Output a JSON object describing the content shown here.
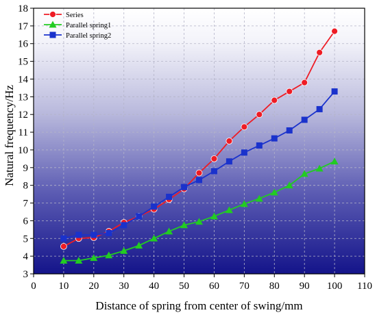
{
  "chart_data": {
    "type": "line",
    "title": "",
    "xlabel": "Distance of spring from center of swing/mm",
    "ylabel": "Natural frequency/Hz",
    "xlim": [
      0,
      110
    ],
    "ylim": [
      3,
      18
    ],
    "xticks": [
      0,
      10,
      20,
      30,
      40,
      50,
      60,
      70,
      80,
      90,
      100,
      110
    ],
    "yticks": [
      3,
      4,
      5,
      6,
      7,
      8,
      9,
      10,
      11,
      12,
      13,
      14,
      15,
      16,
      17,
      18
    ],
    "grid": true,
    "legend": "top-left",
    "background": "vertical gradient from white (top) to navy (bottom)",
    "x": [
      10,
      15,
      20,
      25,
      30,
      35,
      40,
      45,
      50,
      55,
      60,
      65,
      70,
      75,
      80,
      85,
      90,
      95,
      100
    ],
    "series": [
      {
        "name": "Series",
        "marker": "circle",
        "color": "#ee1c25",
        "values": [
          4.55,
          5.0,
          5.05,
          5.4,
          5.9,
          6.25,
          6.65,
          7.2,
          7.8,
          8.7,
          9.5,
          10.5,
          11.3,
          12.0,
          12.8,
          13.3,
          13.8,
          15.5,
          16.7
        ]
      },
      {
        "name": "Parallel spring1",
        "marker": "triangle",
        "color": "#22cc22",
        "values": [
          3.75,
          3.75,
          3.9,
          4.05,
          4.3,
          4.6,
          5.0,
          5.4,
          5.75,
          5.95,
          6.25,
          6.6,
          6.95,
          7.25,
          7.6,
          8.0,
          8.65,
          8.95,
          9.35
        ]
      },
      {
        "name": "Parallel spring2",
        "marker": "square",
        "color": "#1a32cc",
        "values": [
          5.0,
          5.2,
          5.2,
          5.3,
          5.75,
          6.25,
          6.8,
          7.35,
          7.9,
          8.3,
          8.8,
          9.35,
          9.85,
          10.25,
          10.65,
          11.1,
          11.7,
          12.3,
          13.3
        ]
      }
    ]
  }
}
